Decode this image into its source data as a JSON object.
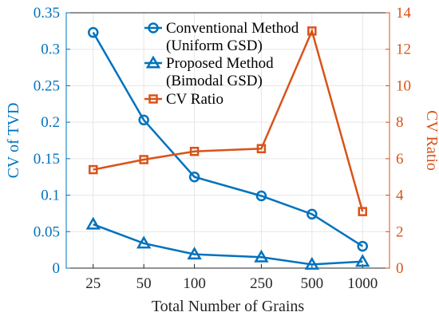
{
  "chart_data": {
    "type": "line",
    "xlabel": "Total Number of Grains",
    "ylabel_left": "CV of TVD",
    "ylabel_right": "CV Ratio",
    "x_scale": "log",
    "categories": [
      "25",
      "50",
      "100",
      "250",
      "500",
      "1000"
    ],
    "x": [
      25,
      50,
      100,
      250,
      500,
      1000
    ],
    "ylim_left": [
      0,
      0.35
    ],
    "yticks_left": [
      "0",
      "0.05",
      "0.1",
      "0.15",
      "0.2",
      "0.25",
      "0.3",
      "0.35"
    ],
    "ylim_right": [
      0,
      14
    ],
    "yticks_right": [
      "0",
      "2",
      "4",
      "6",
      "8",
      "10",
      "12",
      "14"
    ],
    "grid": true,
    "legend_position": "top-center",
    "series": [
      {
        "name": "Conventional Method (Uniform GSD)",
        "legend_lines": [
          "Conventional Method",
          "(Uniform GSD)"
        ],
        "axis": "left",
        "marker": "circle",
        "color": "#0072BD",
        "values": [
          0.323,
          0.203,
          0.125,
          0.099,
          0.074,
          0.03
        ]
      },
      {
        "name": "Proposed Method (Bimodal GSD)",
        "legend_lines": [
          "Proposed Method",
          "(Bimodal GSD)"
        ],
        "axis": "left",
        "marker": "triangle",
        "color": "#0072BD",
        "values": [
          0.06,
          0.034,
          0.019,
          0.015,
          0.005,
          0.009
        ]
      },
      {
        "name": "CV Ratio",
        "legend_lines": [
          "CV Ratio"
        ],
        "axis": "right",
        "marker": "square",
        "color": "#D95319",
        "values": [
          5.4,
          5.95,
          6.4,
          6.55,
          13.0,
          3.1
        ]
      }
    ]
  }
}
